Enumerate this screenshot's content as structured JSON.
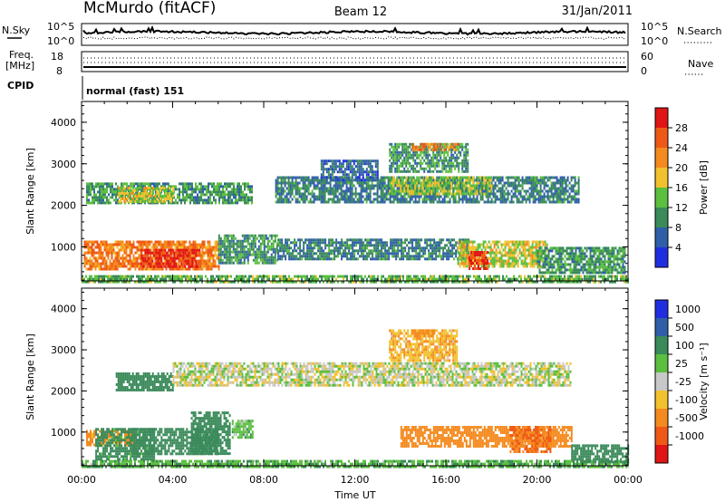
{
  "header": {
    "station": "McMurdo (fitACF)",
    "beam": "Beam 12",
    "date": "31/Jan/2011"
  },
  "strip_labels": {
    "nsky": "N.Sky",
    "nsky_ticks": [
      "10^5",
      "10^0"
    ],
    "nsearch": "N.Search",
    "nsearch_ticks": [
      "10^5",
      "10^0"
    ],
    "freq_label_1": "Freq.",
    "freq_label_2": "[MHz]",
    "freq_ticks": [
      "18",
      "8"
    ],
    "nave": "Nave",
    "nave_ticks": [
      "60",
      "0"
    ],
    "cpid": "CPID",
    "cpid_value": "normal (fast) 151"
  },
  "colors": {
    "power": [
      "#1f2fe0",
      "#2f5fa8",
      "#3a8a5a",
      "#5bbf3f",
      "#f2c12e",
      "#f58a1f",
      "#ee5a16",
      "#e01515"
    ],
    "velocity": [
      "#e01515",
      "#ee5a16",
      "#f58a1f",
      "#f2c12e",
      "#c8c8c8",
      "#5bbf3f",
      "#3a8a5a",
      "#2f5fa8",
      "#1f2fe0"
    ]
  },
  "chart_data": [
    {
      "type": "heatmap",
      "title": "Power",
      "xlabel": "Time UT",
      "ylabel": "Slant Range [km]",
      "x_ticks": [
        "00:00",
        "04:00",
        "08:00",
        "12:00",
        "16:00",
        "20:00",
        "00:00"
      ],
      "x_range_hours": [
        0,
        24
      ],
      "ylim": [
        180,
        4500
      ],
      "y_ticks": [
        1000,
        2000,
        3000,
        4000
      ],
      "colorbar": {
        "label": "Power [dB]",
        "ticks": [
          "4",
          "8",
          "12",
          "16",
          "20",
          "24",
          "28"
        ],
        "range": [
          0,
          30
        ]
      },
      "regions": [
        {
          "t0": 0.0,
          "t1": 24.0,
          "r0": 180,
          "r1": 320,
          "value": 12
        },
        {
          "t0": 0.1,
          "t1": 6.0,
          "r0": 450,
          "r1": 1150,
          "value": 22
        },
        {
          "t0": 2.6,
          "t1": 5.2,
          "r0": 550,
          "r1": 950,
          "value": 28
        },
        {
          "t0": 6.0,
          "t1": 8.6,
          "r0": 600,
          "r1": 1300,
          "value": 10
        },
        {
          "t0": 8.6,
          "t1": 17.0,
          "r0": 700,
          "r1": 1200,
          "value": 8
        },
        {
          "t0": 16.5,
          "t1": 20.5,
          "r0": 500,
          "r1": 1150,
          "value": 16
        },
        {
          "t0": 17.0,
          "t1": 17.8,
          "r0": 500,
          "r1": 900,
          "value": 27
        },
        {
          "t0": 20.0,
          "t1": 23.9,
          "r0": 350,
          "r1": 1000,
          "value": 10
        },
        {
          "t0": 0.2,
          "t1": 7.5,
          "r0": 2050,
          "r1": 2550,
          "value": 10
        },
        {
          "t0": 1.6,
          "t1": 4.0,
          "r0": 2100,
          "r1": 2450,
          "value": 16
        },
        {
          "t0": 8.5,
          "t1": 21.8,
          "r0": 2050,
          "r1": 2700,
          "value": 8
        },
        {
          "t0": 13.5,
          "t1": 18.0,
          "r0": 2300,
          "r1": 2700,
          "value": 14
        },
        {
          "t0": 10.5,
          "t1": 13.0,
          "r0": 2600,
          "r1": 3100,
          "value": 6
        },
        {
          "t0": 13.5,
          "t1": 17.0,
          "r0": 2800,
          "r1": 3500,
          "value": 10
        },
        {
          "t0": 14.5,
          "t1": 16.5,
          "r0": 3350,
          "r1": 3500,
          "value": 22
        }
      ]
    },
    {
      "type": "heatmap",
      "title": "Velocity",
      "xlabel": "Time UT",
      "ylabel": "Slant Range [km]",
      "x_ticks": [
        "00:00",
        "04:00",
        "08:00",
        "12:00",
        "16:00",
        "20:00",
        "00:00"
      ],
      "x_range_hours": [
        0,
        24
      ],
      "ylim": [
        180,
        4500
      ],
      "y_ticks": [
        1000,
        2000,
        3000,
        4000
      ],
      "colorbar": {
        "label": "Velocity [m s⁻¹]",
        "ticks": [
          "1000",
          "500",
          "100",
          "25",
          "-25",
          "-100",
          "-500",
          "-1000"
        ]
      },
      "regions": [
        {
          "t0": 0.0,
          "t1": 24.0,
          "r0": 180,
          "r1": 320,
          "value": 80
        },
        {
          "t0": 0.2,
          "t1": 2.2,
          "r0": 700,
          "r1": 1050,
          "value": -150
        },
        {
          "t0": 0.6,
          "t1": 3.2,
          "r0": 350,
          "r1": 1100,
          "value": 150
        },
        {
          "t0": 2.2,
          "t1": 6.0,
          "r0": 450,
          "r1": 1100,
          "value": 400
        },
        {
          "t0": 4.8,
          "t1": 6.5,
          "r0": 500,
          "r1": 1500,
          "value": 200
        },
        {
          "t0": 6.6,
          "t1": 7.5,
          "r0": 900,
          "r1": 1300,
          "value": 60
        },
        {
          "t0": 14.0,
          "t1": 21.5,
          "r0": 650,
          "r1": 1150,
          "value": -300
        },
        {
          "t0": 18.8,
          "t1": 20.6,
          "r0": 550,
          "r1": 1150,
          "value": -500
        },
        {
          "t0": 21.5,
          "t1": 24.0,
          "r0": 250,
          "r1": 700,
          "value": 300
        },
        {
          "t0": 1.5,
          "t1": 4.0,
          "r0": 2050,
          "r1": 2450,
          "value": 400
        },
        {
          "t0": 4.0,
          "t1": 21.5,
          "r0": 2150,
          "r1": 2700,
          "value": 0
        },
        {
          "t0": 13.5,
          "t1": 16.5,
          "r0": 2750,
          "r1": 3500,
          "value": -80
        },
        {
          "t0": 14.5,
          "t1": 15.5,
          "r0": 3350,
          "r1": 3500,
          "value": -150
        }
      ]
    }
  ]
}
